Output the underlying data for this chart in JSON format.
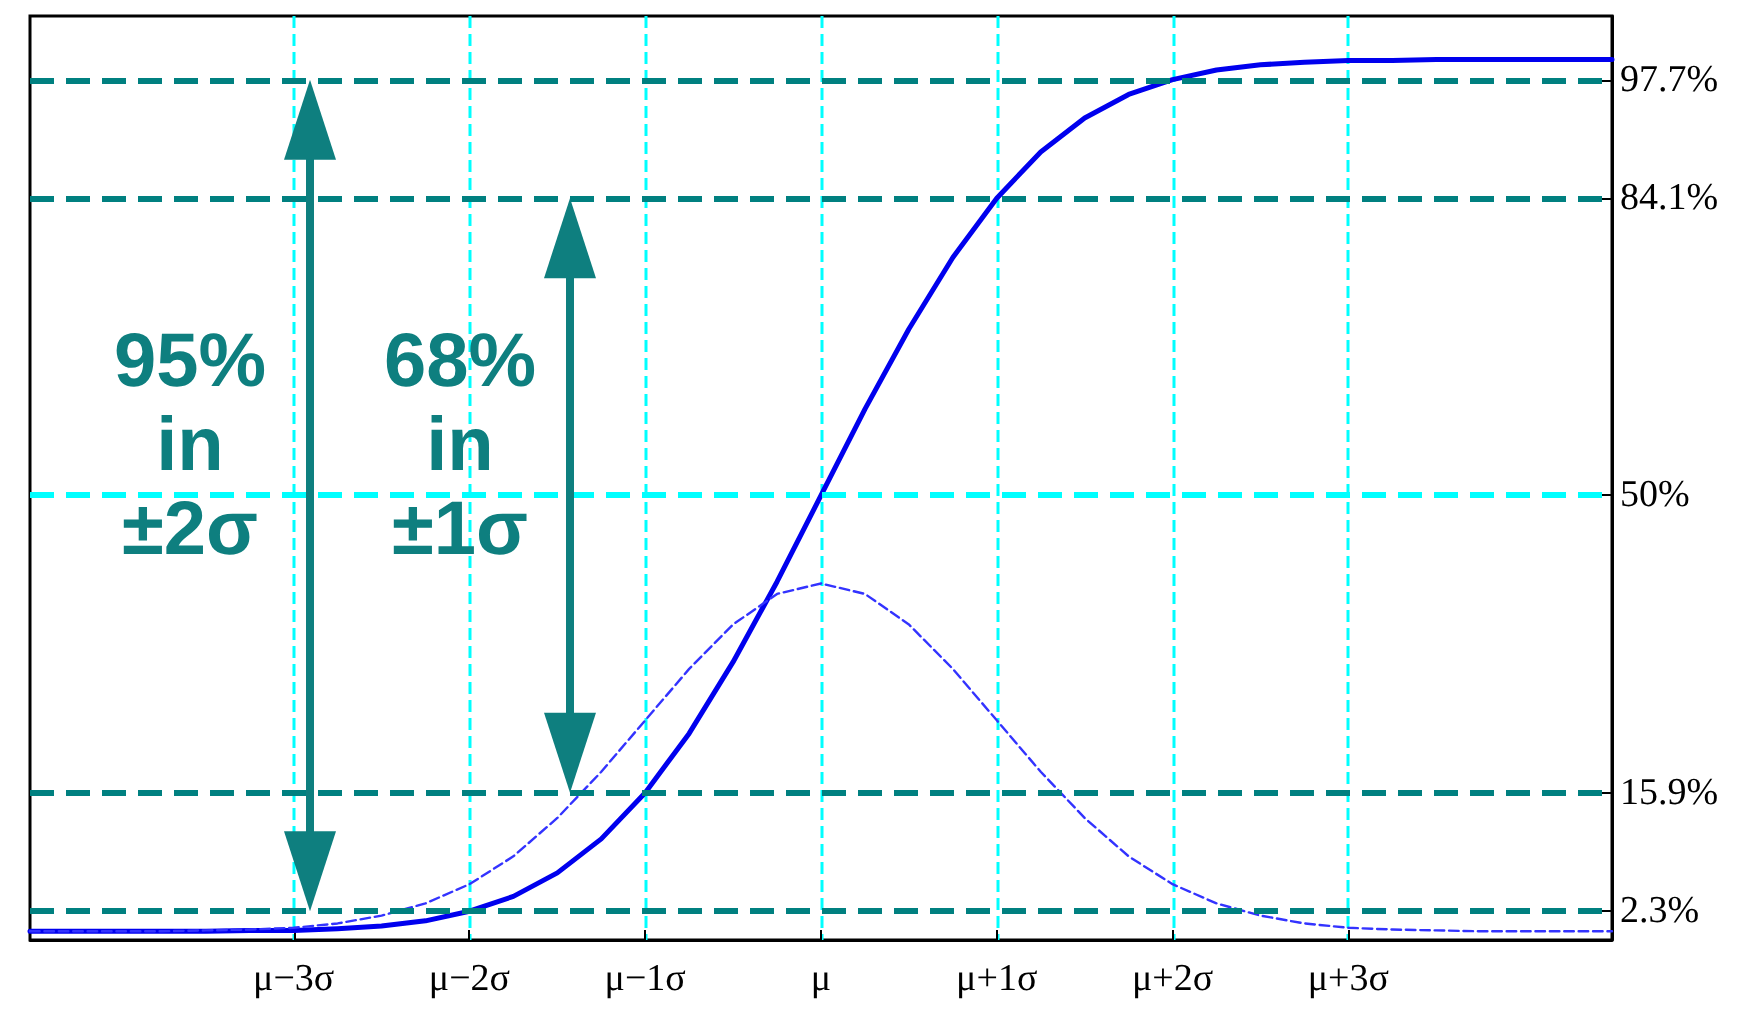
{
  "chart_data": {
    "type": "line",
    "categories": [
      null,
      null,
      null,
      null,
      null,
      null,
      "μ−3σ",
      null,
      null,
      null,
      "μ−2σ",
      null,
      null,
      null,
      "μ−1σ",
      null,
      null,
      null,
      "μ",
      null,
      null,
      null,
      "μ+1σ",
      null,
      null,
      null,
      "μ+2σ",
      null,
      null,
      null,
      "μ+3σ",
      null,
      null,
      null,
      null,
      null,
      null
    ],
    "series": [
      {
        "color": "#0000ee",
        "line_style": "solid",
        "values": [
          0,
          0,
          0,
          0,
          0,
          0.1,
          0.1,
          0.3,
          0.6,
          1.2,
          2.3,
          4,
          6.7,
          10.6,
          15.9,
          22.7,
          30.9,
          40.1,
          50,
          59.9,
          69.1,
          77.3,
          84.1,
          89.4,
          93.3,
          96,
          97.7,
          98.8,
          99.4,
          99.7,
          99.9,
          99.9,
          100,
          100,
          100,
          100,
          100
        ]
      },
      {
        "color": "#3333ff",
        "line_style": "dashed",
        "values": [
          0,
          0,
          0,
          0,
          0.1,
          0.2,
          0.4,
          0.9,
          1.8,
          3.2,
          5.4,
          8.6,
          13,
          18.3,
          24.2,
          30.1,
          35.2,
          38.7,
          39.9,
          38.7,
          35.2,
          30.1,
          24.2,
          18.3,
          13,
          8.6,
          5.4,
          3.2,
          1.8,
          0.9,
          0.4,
          0.2,
          0.1,
          0,
          0,
          0,
          0
        ]
      }
    ],
    "ylim": [
      -1,
      105
    ],
    "yticks": [
      {
        "value": 2.3,
        "label": "2.3%"
      },
      {
        "value": 15.9,
        "label": "15.9%"
      },
      {
        "value": 50,
        "label": "50%"
      },
      {
        "value": 84.1,
        "label": "84.1%"
      },
      {
        "value": 97.7,
        "label": "97.7%"
      }
    ],
    "grid": "x",
    "marker": "none",
    "ref_lines": [
      {
        "axis": "y",
        "value": 97.7,
        "color": "#008080",
        "line_style": "dashed"
      },
      {
        "axis": "y",
        "value": 84.1,
        "color": "#008080",
        "line_style": "dashed"
      },
      {
        "axis": "y",
        "value": 15.9,
        "color": "#008080",
        "line_style": "dashed"
      },
      {
        "axis": "y",
        "value": 2.3,
        "color": "#008080",
        "line_style": "dashed"
      },
      {
        "axis": "y",
        "value": 50,
        "color": "#00ffff",
        "line_style": "dashed"
      }
    ],
    "annotations": [
      "95%\nin\n±2σ",
      "68%\nin\n±1σ"
    ]
  }
}
